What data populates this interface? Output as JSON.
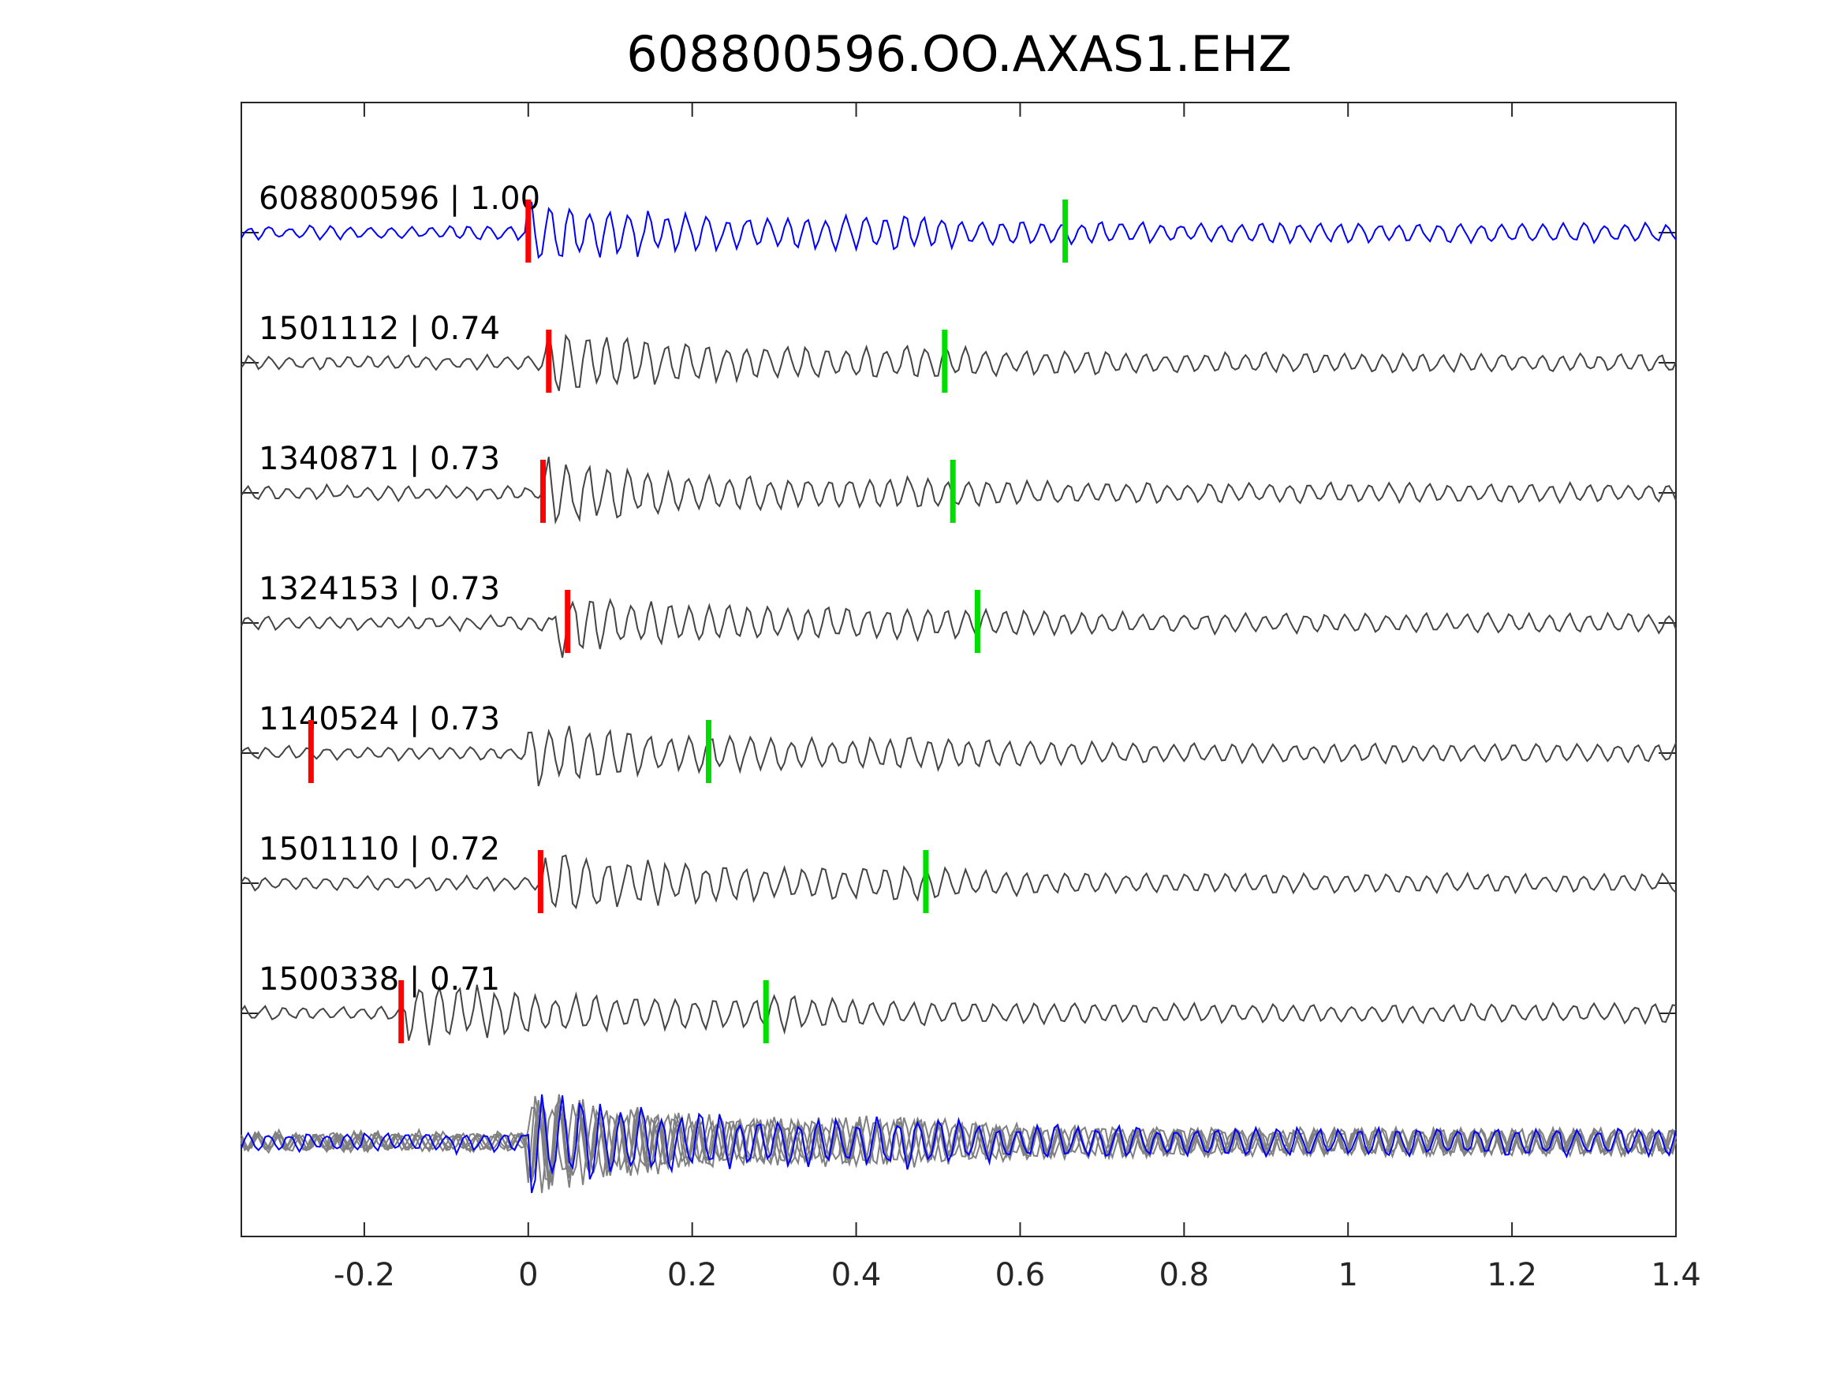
{
  "chart_data": {
    "type": "line",
    "title": "608800596.OO.AXAS1.EHZ",
    "xlabel": "",
    "ylabel": "",
    "xlim": [
      -0.35,
      1.4
    ],
    "x_ticks": [
      -0.2,
      0,
      0.2,
      0.4,
      0.6,
      0.8,
      1,
      1.2,
      1.4
    ],
    "x_tick_labels": [
      "-0.2",
      "0",
      "0.2",
      "0.4",
      "0.6",
      "0.8",
      "1",
      "1.2",
      "1.4"
    ],
    "grid": false,
    "colors": {
      "target": "#0000ff",
      "match": "#444444",
      "stack": "#808080",
      "p_pick": "#ff0000",
      "s_pick": "#00dd00"
    },
    "series": [
      {
        "name": "608800596 | 1.00",
        "p_pick": 0.0,
        "s_pick": 0.655,
        "onset": 0.0,
        "cc": 1.0
      },
      {
        "name": "1501112 | 0.74",
        "p_pick": 0.025,
        "s_pick": 0.508,
        "onset": 0.02,
        "cc": 0.74
      },
      {
        "name": "1340871 | 0.73",
        "p_pick": 0.018,
        "s_pick": 0.518,
        "onset": 0.02,
        "cc": 0.73
      },
      {
        "name": "1324153 | 0.73",
        "p_pick": 0.048,
        "s_pick": 0.548,
        "onset": 0.03,
        "cc": 0.73
      },
      {
        "name": "1140524 | 0.73",
        "p_pick": -0.265,
        "s_pick": 0.22,
        "onset": 0.0,
        "cc": 0.73
      },
      {
        "name": "1501110 | 0.72",
        "p_pick": 0.015,
        "s_pick": 0.485,
        "onset": 0.02,
        "cc": 0.72
      },
      {
        "name": "1500338 | 0.71",
        "p_pick": -0.155,
        "s_pick": 0.29,
        "onset": -0.15,
        "cc": 0.71
      }
    ]
  }
}
